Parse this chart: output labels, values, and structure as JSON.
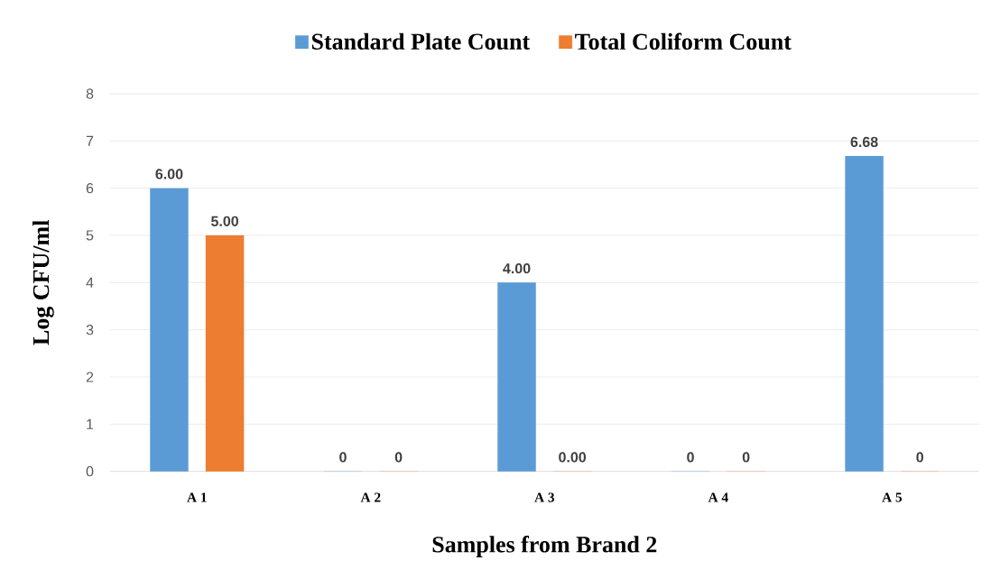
{
  "chart_data": {
    "type": "bar",
    "xlabel": "Samples from Brand 2",
    "ylabel": "Log CFU/ml",
    "categories": [
      "A 1",
      "A 2",
      "A 3",
      "A 4",
      "A 5"
    ],
    "series": [
      {
        "name": "Standard Plate Count",
        "color": "#5b9bd5",
        "values": [
          6.0,
          0,
          4.0,
          0,
          6.68
        ],
        "value_labels": [
          "6.00",
          "0",
          "4.00",
          "0",
          "6.68"
        ]
      },
      {
        "name": "Total Coliform Count",
        "color": "#ed7d31",
        "values": [
          5.0,
          0,
          0,
          0,
          0
        ],
        "value_labels": [
          "5.00",
          "0",
          "0.00",
          "0",
          "0"
        ]
      }
    ],
    "ylim": [
      0,
      8
    ],
    "yticks": [
      0,
      1,
      2,
      3,
      4,
      5,
      6,
      7,
      8
    ],
    "grid": "y",
    "legend": "top"
  }
}
